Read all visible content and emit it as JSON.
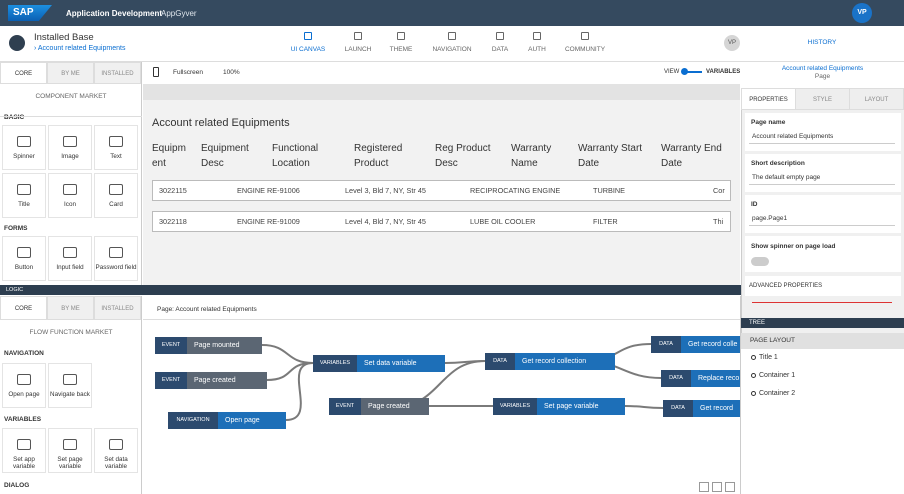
{
  "shell": {
    "brand": "SAP",
    "title": "Application Development",
    "subtitle": "AppGyver",
    "avatar": "VP"
  },
  "header": {
    "app": "Installed Base",
    "breadcrumb": "› Account related Equipments",
    "tabs": [
      "UI CANVAS",
      "LAUNCH",
      "THEME",
      "NAVIGATION",
      "DATA",
      "AUTH",
      "COMMUNITY"
    ],
    "user": "VP",
    "history": "HISTORY"
  },
  "palette": {
    "tabs": [
      "CORE",
      "BY ME",
      "INSTALLED"
    ],
    "market": "COMPONENT MARKET",
    "sections": [
      {
        "title": "BASIC",
        "items": [
          "Spinner",
          "Image",
          "Text",
          "Title",
          "Icon",
          "Card"
        ]
      },
      {
        "title": "FORMS",
        "items": [
          "Button",
          "Input field",
          "Password field"
        ]
      }
    ]
  },
  "canvas": {
    "fullscreen": "Fullscreen",
    "zoom": "100%",
    "view": "VIEW",
    "variables": "VARIABLES",
    "page_title": "Account related Equipments",
    "table": {
      "headers": [
        "Equipment",
        "Equipment Desc",
        "Functional Location",
        "Registered Product",
        "Reg Product Desc",
        "Warranty Name",
        "Warranty Start Date",
        "Warranty End Date"
      ],
      "rows": [
        [
          "3022115",
          "ENGINE RE-91006",
          "Level 3, Bld 7, NY, Str 45",
          "RECIPROCATING ENGINE",
          "TURBINE",
          "Cor"
        ],
        [
          "3022118",
          "ENGINE RE-91009",
          "Level 4, Bld 7, NY, Str 45",
          "LUBE OIL COOLER",
          "FILTER",
          "Thi"
        ]
      ]
    }
  },
  "properties": {
    "page": "Account related Equipments",
    "kind": "Page",
    "tabs": [
      "PROPERTIES",
      "STYLE",
      "LAYOUT"
    ],
    "fields": [
      {
        "label": "Page name",
        "value": "Account related Equipments"
      },
      {
        "label": "Short description",
        "value": "The default empty page"
      },
      {
        "label": "ID",
        "value": "page.Page1"
      }
    ],
    "spinner": "Show spinner on page load",
    "advanced": "ADVANCED PROPERTIES",
    "tree": "TREE",
    "layout": "PAGE LAYOUT",
    "tree_items": [
      "Title 1",
      "Container 1",
      "Container 2"
    ]
  },
  "logic": {
    "bar": "LOGIC",
    "tabs": [
      "CORE",
      "BY ME",
      "INSTALLED"
    ],
    "market": "FLOW FUNCTION MARKET",
    "sections": [
      {
        "title": "NAVIGATION",
        "items": [
          "Open page",
          "Navigate back"
        ]
      },
      {
        "title": "VARIABLES",
        "items": [
          "Set app variable",
          "Set page variable",
          "Set data variable"
        ]
      },
      {
        "title": "DIALOG",
        "items": []
      }
    ],
    "page": "Page: Account related Equipments",
    "nodes": [
      {
        "tag": "EVENT",
        "label": "Page mounted"
      },
      {
        "tag": "EVENT",
        "label": "Page created"
      },
      {
        "tag": "NAVIGATION",
        "label": "Open page"
      },
      {
        "tag": "VARIABLES",
        "label": "Set data variable"
      },
      {
        "tag": "EVENT",
        "label": "Page created"
      },
      {
        "tag": "DATA",
        "label": "Get record collection"
      },
      {
        "tag": "VARIABLES",
        "label": "Set page variable"
      },
      {
        "tag": "DATA",
        "label": "Get record colle"
      },
      {
        "tag": "DATA",
        "label": "Replace reco"
      },
      {
        "tag": "DATA",
        "label": "Get record"
      }
    ]
  }
}
